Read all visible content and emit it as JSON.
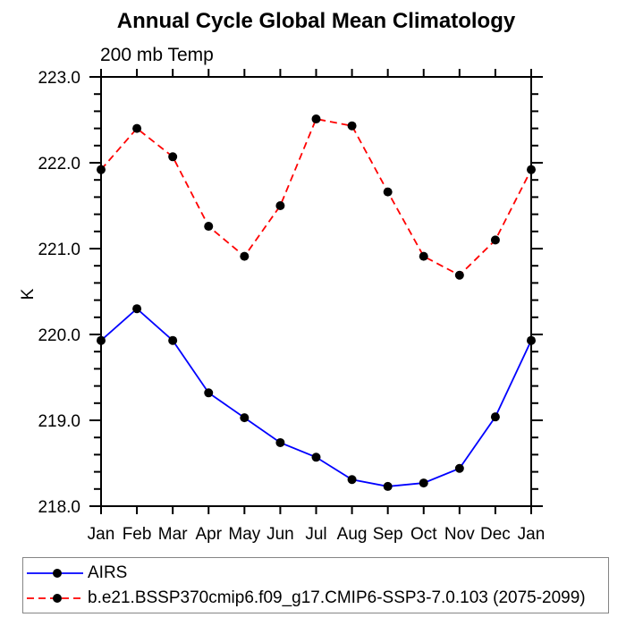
{
  "chart_data": {
    "type": "line",
    "title": "Annual Cycle Global Mean Climatology",
    "subtitle": "200 mb Temp",
    "ylabel": "K",
    "xlabel": "",
    "categories": [
      "Jan",
      "Feb",
      "Mar",
      "Apr",
      "May",
      "Jun",
      "Jul",
      "Aug",
      "Sep",
      "Oct",
      "Nov",
      "Dec",
      "Jan"
    ],
    "ylim": [
      218.0,
      223.0
    ],
    "y_major_step": 1.0,
    "y_minor_step": 0.2,
    "y_tick_labels": [
      "218.0",
      "219.0",
      "220.0",
      "221.0",
      "222.0",
      "223.0"
    ],
    "grid": false,
    "legend_position": "bottom-left-box",
    "colors": {
      "axis": "#000000",
      "background": "#ffffff",
      "legend_border": "#858585",
      "marker": "#000000"
    },
    "series": [
      {
        "name": "AIRS",
        "color": "#0000ff",
        "line_style": "solid",
        "marker": "filled-circle",
        "marker_color": "#000000",
        "values": [
          219.93,
          220.3,
          219.93,
          219.32,
          219.03,
          218.74,
          218.57,
          218.31,
          218.23,
          218.27,
          218.44,
          219.04,
          219.93
        ]
      },
      {
        "name": "b.e21.BSSP370cmip6.f09_g17.CMIP6-SSP3-7.0.103 (2075-2099)",
        "color": "#ff0000",
        "line_style": "dashed",
        "marker": "filled-circle",
        "marker_color": "#000000",
        "values": [
          221.92,
          222.4,
          222.07,
          221.26,
          220.91,
          221.5,
          222.51,
          222.43,
          221.66,
          220.91,
          220.69,
          221.1,
          221.92
        ]
      }
    ]
  }
}
